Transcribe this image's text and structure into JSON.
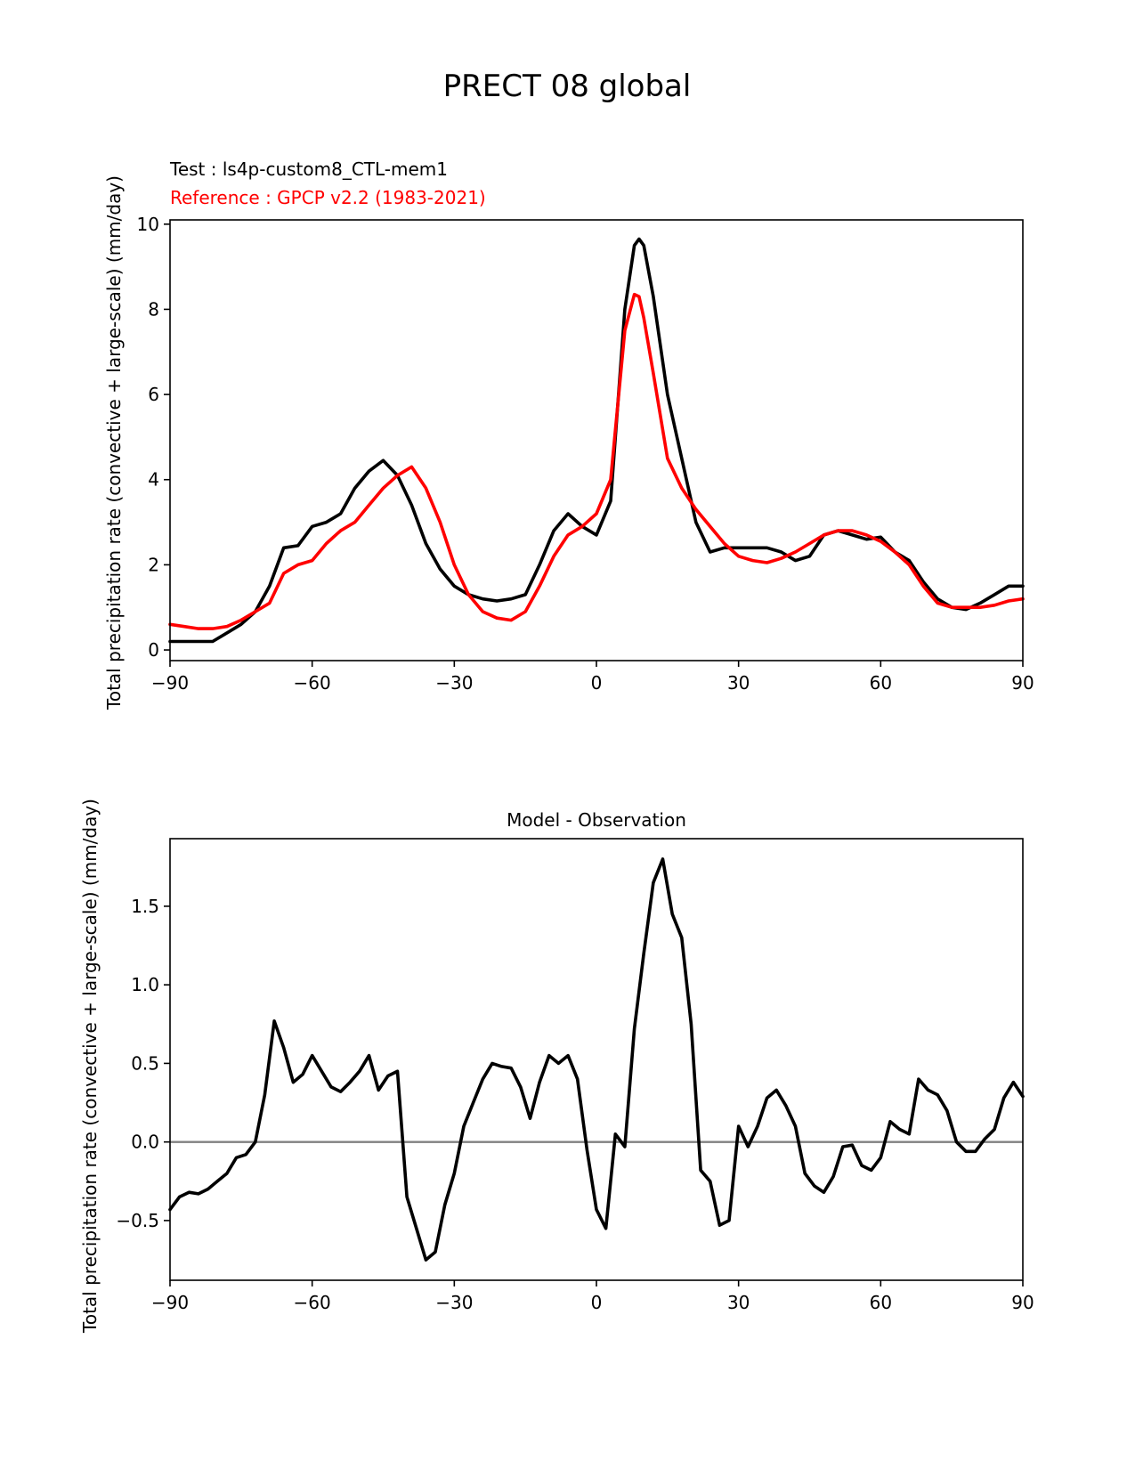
{
  "figure_title": "PRECT 08 global",
  "chart_data": [
    {
      "type": "line",
      "test_label": "Test : ls4p-custom8_CTL-mem1",
      "reference_label": "Reference : GPCP v2.2 (1983-2021)",
      "xlabel": "",
      "ylabel": "Total precipitation rate (convective + large-scale) (mm/day)",
      "xlim": [
        -90,
        90
      ],
      "ylim": [
        -0.25,
        10.1
      ],
      "xticks": [
        -90,
        -60,
        -30,
        0,
        30,
        60,
        90
      ],
      "xtick_labels": [
        "−90",
        "−60",
        "−30",
        "0",
        "30",
        "60",
        "90"
      ],
      "yticks": [
        0,
        2,
        4,
        6,
        8,
        10
      ],
      "ytick_labels": [
        "0",
        "2",
        "4",
        "6",
        "8",
        "10"
      ],
      "series": [
        {
          "name": "Test : ls4p-custom8_CTL-mem1",
          "color": "#000000",
          "x": [
            -90,
            -87,
            -84,
            -81,
            -78,
            -75,
            -72,
            -69,
            -66,
            -63,
            -60,
            -57,
            -54,
            -51,
            -48,
            -45,
            -42,
            -39,
            -36,
            -33,
            -30,
            -27,
            -24,
            -21,
            -18,
            -15,
            -12,
            -9,
            -6,
            -3,
            0,
            3,
            6,
            8,
            9,
            10,
            12,
            15,
            18,
            21,
            24,
            27,
            30,
            33,
            36,
            39,
            42,
            45,
            48,
            51,
            54,
            57,
            60,
            63,
            66,
            69,
            72,
            75,
            78,
            81,
            84,
            87,
            90
          ],
          "values": [
            0.2,
            0.2,
            0.2,
            0.2,
            0.4,
            0.6,
            0.9,
            1.5,
            2.4,
            2.45,
            2.9,
            3.0,
            3.2,
            3.8,
            4.2,
            4.45,
            4.1,
            3.4,
            2.5,
            1.9,
            1.5,
            1.3,
            1.2,
            1.15,
            1.2,
            1.3,
            2.0,
            2.8,
            3.2,
            2.9,
            2.7,
            3.5,
            8.0,
            9.5,
            9.65,
            9.5,
            8.3,
            6.0,
            4.5,
            3.0,
            2.3,
            2.4,
            2.4,
            2.4,
            2.4,
            2.3,
            2.1,
            2.2,
            2.7,
            2.8,
            2.7,
            2.6,
            2.65,
            2.3,
            2.1,
            1.6,
            1.2,
            1.0,
            0.95,
            1.1,
            1.3,
            1.5,
            1.5
          ]
        },
        {
          "name": "Reference : GPCP v2.2 (1983-2021)",
          "color": "#ff0000",
          "x": [
            -90,
            -87,
            -84,
            -81,
            -78,
            -75,
            -72,
            -69,
            -66,
            -63,
            -60,
            -57,
            -54,
            -51,
            -48,
            -45,
            -42,
            -39,
            -36,
            -33,
            -30,
            -27,
            -24,
            -21,
            -18,
            -15,
            -12,
            -9,
            -6,
            -3,
            0,
            3,
            6,
            8,
            9,
            10,
            12,
            15,
            18,
            21,
            24,
            27,
            30,
            33,
            36,
            39,
            42,
            45,
            48,
            51,
            54,
            57,
            60,
            63,
            66,
            69,
            72,
            75,
            78,
            81,
            84,
            87,
            90
          ],
          "values": [
            0.6,
            0.55,
            0.5,
            0.5,
            0.55,
            0.7,
            0.9,
            1.1,
            1.8,
            2.0,
            2.1,
            2.5,
            2.8,
            3.0,
            3.4,
            3.8,
            4.1,
            4.3,
            3.8,
            3.0,
            2.0,
            1.3,
            0.9,
            0.75,
            0.7,
            0.9,
            1.5,
            2.2,
            2.7,
            2.9,
            3.2,
            4.0,
            7.5,
            8.35,
            8.3,
            7.8,
            6.5,
            4.5,
            3.8,
            3.3,
            2.9,
            2.5,
            2.2,
            2.1,
            2.05,
            2.15,
            2.3,
            2.5,
            2.7,
            2.8,
            2.8,
            2.7,
            2.55,
            2.3,
            2.0,
            1.5,
            1.1,
            1.0,
            1.0,
            1.0,
            1.05,
            1.15,
            1.2
          ]
        }
      ]
    },
    {
      "type": "line",
      "title": "Model - Observation",
      "xlabel": "",
      "ylabel": "Total precipitation rate (convective + large-scale) (mm/day)",
      "xlim": [
        -90,
        90
      ],
      "ylim": [
        -0.88,
        1.93
      ],
      "xticks": [
        -90,
        -60,
        -30,
        0,
        30,
        60,
        90
      ],
      "xtick_labels": [
        "−90",
        "−60",
        "−30",
        "0",
        "30",
        "60",
        "90"
      ],
      "yticks": [
        -0.5,
        0.0,
        0.5,
        1.0,
        1.5
      ],
      "ytick_labels": [
        "−0.5",
        "0.0",
        "0.5",
        "1.0",
        "1.5"
      ],
      "zero_line_color": "#808080",
      "series": [
        {
          "name": "Model - Observation",
          "color": "#000000",
          "x": [
            -90,
            -88,
            -86,
            -84,
            -82,
            -80,
            -78,
            -76,
            -74,
            -72,
            -70,
            -68,
            -66,
            -64,
            -62,
            -60,
            -58,
            -56,
            -54,
            -52,
            -50,
            -48,
            -46,
            -44,
            -42,
            -40,
            -38,
            -36,
            -34,
            -32,
            -30,
            -28,
            -26,
            -24,
            -22,
            -20,
            -18,
            -16,
            -14,
            -12,
            -10,
            -8,
            -6,
            -4,
            -2,
            0,
            2,
            4,
            6,
            8,
            10,
            12,
            14,
            16,
            18,
            20,
            22,
            24,
            26,
            28,
            30,
            32,
            34,
            36,
            38,
            40,
            42,
            44,
            46,
            48,
            50,
            52,
            54,
            56,
            58,
            60,
            62,
            64,
            66,
            68,
            70,
            72,
            74,
            76,
            78,
            80,
            82,
            84,
            86,
            88,
            90
          ],
          "values": [
            -0.43,
            -0.35,
            -0.32,
            -0.33,
            -0.3,
            -0.25,
            -0.2,
            -0.1,
            -0.08,
            0.0,
            0.3,
            0.77,
            0.6,
            0.38,
            0.43,
            0.55,
            0.45,
            0.35,
            0.32,
            0.38,
            0.45,
            0.55,
            0.33,
            0.42,
            0.45,
            -0.35,
            -0.55,
            -0.75,
            -0.7,
            -0.4,
            -0.2,
            0.1,
            0.25,
            0.4,
            0.5,
            0.48,
            0.47,
            0.35,
            0.15,
            0.38,
            0.55,
            0.5,
            0.55,
            0.4,
            -0.05,
            -0.43,
            -0.55,
            0.05,
            -0.03,
            0.72,
            1.2,
            1.65,
            1.8,
            1.45,
            1.3,
            0.75,
            -0.18,
            -0.25,
            -0.53,
            -0.5,
            0.1,
            -0.03,
            0.1,
            0.28,
            0.33,
            0.23,
            0.1,
            -0.2,
            -0.28,
            -0.32,
            -0.22,
            -0.03,
            -0.02,
            -0.15,
            -0.18,
            -0.1,
            0.13,
            0.08,
            0.05,
            0.4,
            0.33,
            0.3,
            0.2,
            0.0,
            -0.06,
            -0.06,
            0.02,
            0.08,
            0.28,
            0.38,
            0.29
          ]
        }
      ]
    }
  ]
}
